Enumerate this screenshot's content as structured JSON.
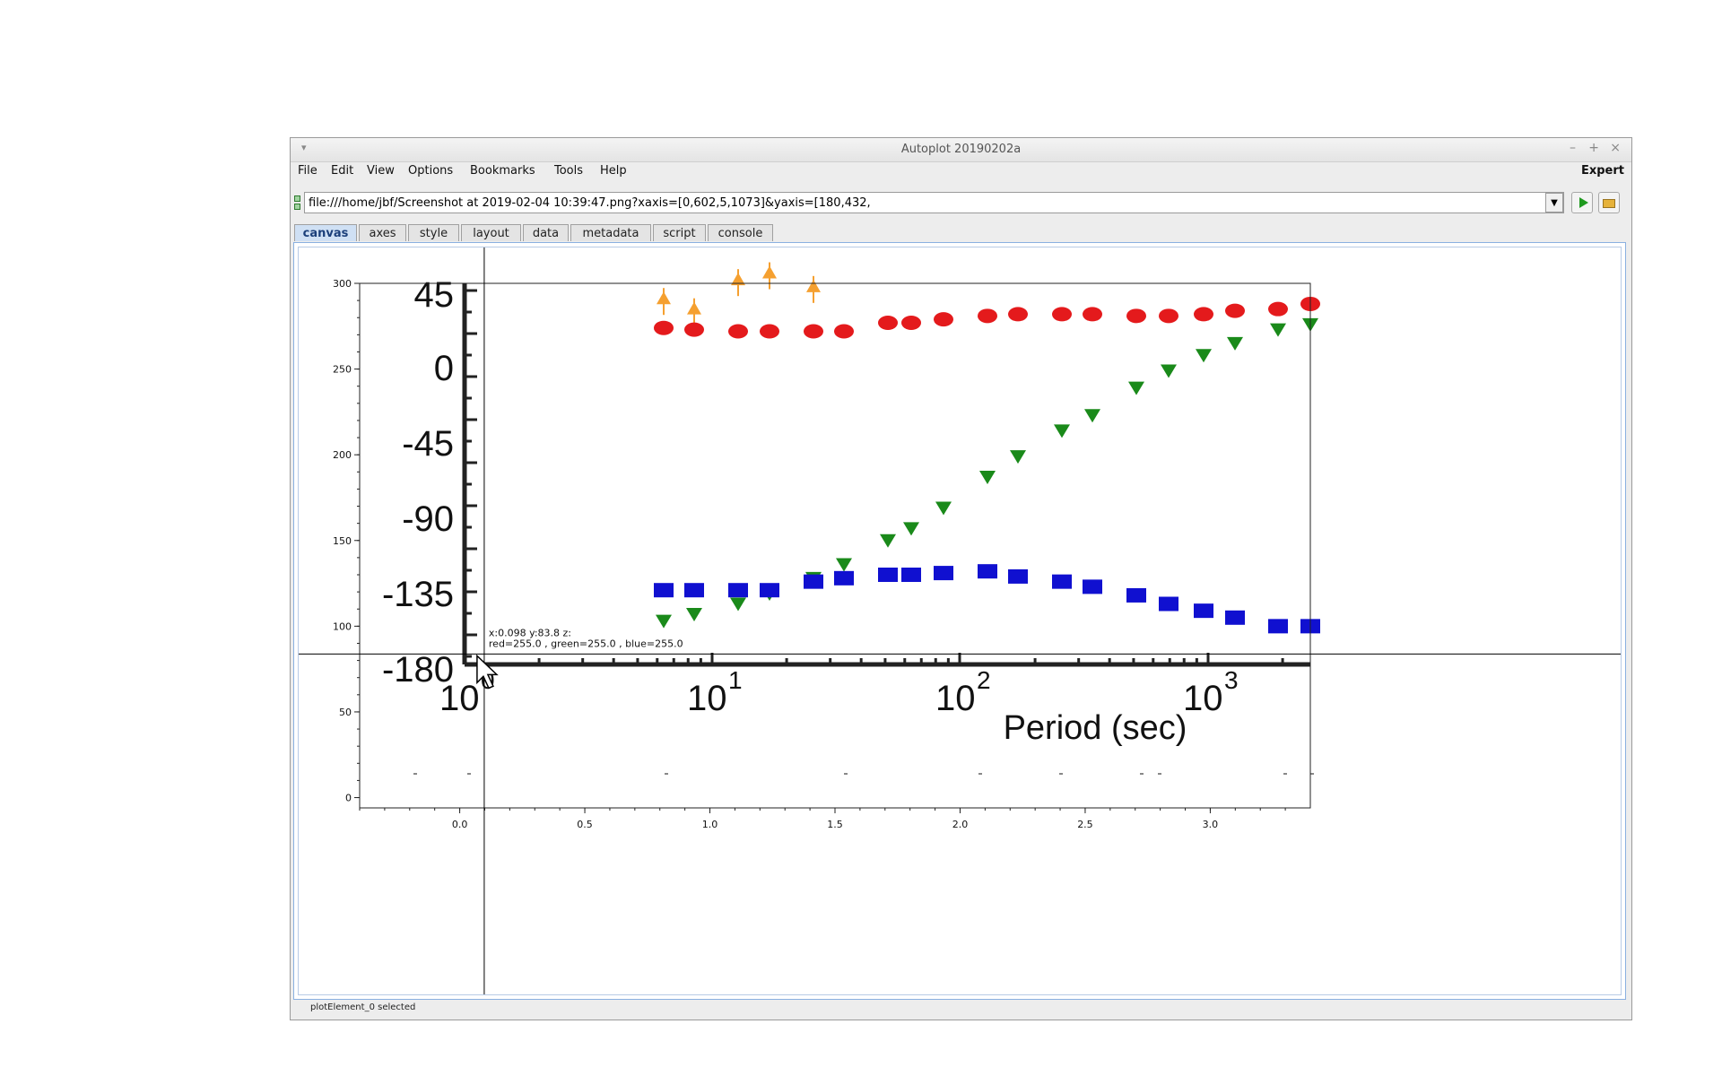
{
  "window": {
    "title": "Autoplot 20190202a"
  },
  "menus": [
    "File",
    "Edit",
    "View",
    "Options",
    "Bookmarks",
    "Tools",
    "Help"
  ],
  "expert_label": "Expert",
  "url": "file:///home/jbf/Screenshot at 2019-02-04 10:39:47.png?xaxis=[0,602,5,1073]&yaxis=[180,432,",
  "tabs": [
    "canvas",
    "axes",
    "style",
    "layout",
    "data",
    "metadata",
    "script",
    "console"
  ],
  "active_tab": "canvas",
  "status": "plotElement_0 selected",
  "readout": {
    "line1": "x:0.098  y:83.8  z:",
    "line2": "red=255.0 , green=255.0 , blue=255.0"
  },
  "chart_data": {
    "type": "scatter",
    "xlim": [
      -0.4,
      3.4
    ],
    "ylim": [
      -6,
      300
    ],
    "x_ticks": [
      "0.0",
      "0.5",
      "1.0",
      "1.5",
      "2.0",
      "2.5",
      "3.0"
    ],
    "y_ticks": [
      "0",
      "50",
      "100",
      "150",
      "200",
      "250",
      "300"
    ],
    "image": {
      "y_labels": [
        "45",
        "0",
        "-45",
        "-90",
        "-135",
        "-180"
      ],
      "x_labels": [
        {
          "base": "10",
          "exp": "0"
        },
        {
          "base": "10",
          "exp": "1"
        },
        {
          "base": "10",
          "exp": "2"
        },
        {
          "base": "10",
          "exp": "3"
        }
      ],
      "xlabel": "Period (sec)",
      "colors": {
        "red": "#e41a1c",
        "green": "#1a8a1a",
        "blue": "#1010d0",
        "orange": "#f5a030"
      },
      "red_y": [
        274,
        273,
        272,
        272,
        272,
        272,
        277,
        277,
        279,
        281,
        282,
        282,
        282,
        281,
        281,
        282,
        284,
        285,
        288,
        289
      ],
      "green_y": [
        103,
        107,
        113,
        119,
        128,
        136,
        150,
        157,
        169,
        187,
        199,
        214,
        223,
        239,
        249,
        258,
        265,
        273,
        276
      ],
      "blue_y": [
        121,
        121,
        121,
        121,
        126,
        128,
        130,
        130,
        131,
        132,
        129,
        126,
        123,
        118,
        113,
        109,
        105,
        100,
        100
      ],
      "orange_y": [
        291,
        285,
        302,
        306,
        298
      ]
    }
  }
}
